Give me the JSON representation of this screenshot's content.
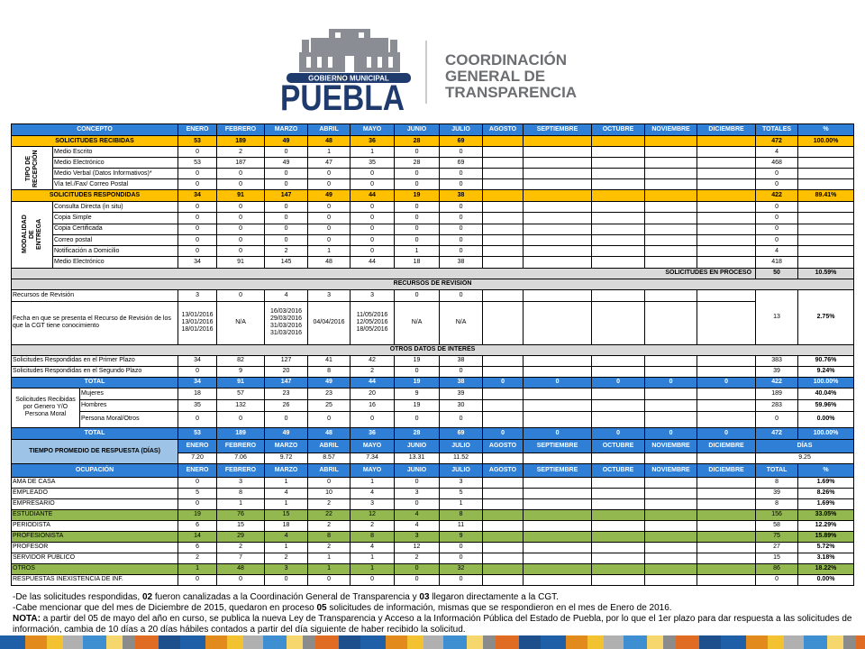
{
  "header": {
    "municipality": "GOBIERNO MUNICIPAL",
    "city": "PUEBLA",
    "org": [
      "COORDINACIÓN",
      "GENERAL DE",
      "TRANSPARENCIA"
    ]
  },
  "table": {
    "columns": [
      "CONCEPTO",
      "ENERO",
      "FEBRERO",
      "MARZO",
      "ABRIL",
      "MAYO",
      "JUNIO",
      "JULIO",
      "AGOSTO",
      "SEPTIEMBRE",
      "OCTUBRE",
      "NOVIEMBRE",
      "DICIEMBRE",
      "TOTALES",
      "%"
    ],
    "received": {
      "label": "SOLICITUDES RECIBIDAS",
      "months": [
        53,
        189,
        49,
        48,
        36,
        28,
        69
      ],
      "total": 472,
      "pct": "100.00%"
    },
    "reception": {
      "label": "TIPO DE RECEPCIÓN",
      "rows": [
        {
          "label": "Medio Escrito",
          "months": [
            0,
            2,
            0,
            1,
            1,
            0,
            0
          ],
          "total": 4
        },
        {
          "label": "Medio Electrónico",
          "months": [
            53,
            187,
            49,
            47,
            35,
            28,
            69
          ],
          "total": 468
        },
        {
          "label": "Medio Verbal (Datos Informativos)*",
          "months": [
            0,
            0,
            0,
            0,
            0,
            0,
            0
          ],
          "total": 0
        },
        {
          "label": "Vía tel./Fax/ Correo Postal",
          "months": [
            0,
            0,
            0,
            0,
            0,
            0,
            0
          ],
          "total": 0
        }
      ]
    },
    "responded": {
      "label": "SOLICITUDES RESPONDIDAS",
      "months": [
        34,
        91,
        147,
        49,
        44,
        19,
        38
      ],
      "total": 422,
      "pct": "89.41%"
    },
    "delivery": {
      "label": "MODALIDAD DE ENTREGA",
      "rows": [
        {
          "label": "Consulta Directa (in situ)",
          "months": [
            0,
            0,
            0,
            0,
            0,
            0,
            0
          ],
          "total": 0
        },
        {
          "label": "Copia Simple",
          "months": [
            0,
            0,
            0,
            0,
            0,
            0,
            0
          ],
          "total": 0
        },
        {
          "label": "Copia Certificada",
          "months": [
            0,
            0,
            0,
            0,
            0,
            0,
            0
          ],
          "total": 0
        },
        {
          "label": "Correo postal",
          "months": [
            0,
            0,
            0,
            0,
            0,
            0,
            0
          ],
          "total": 0
        },
        {
          "label": "Notificación a Domicilio",
          "months": [
            0,
            0,
            2,
            1,
            0,
            1,
            0
          ],
          "total": 4
        },
        {
          "label": "Medio Electrónico",
          "months": [
            34,
            91,
            145,
            48,
            44,
            18,
            38
          ],
          "total": 418
        }
      ]
    },
    "in_process": {
      "label": "SOLICITUDES EN PROCESO",
      "total": 50,
      "pct": "10.59%"
    },
    "appeals_title": "RECURSOS DE REVISIÓN",
    "appeals": {
      "label": "Recursos de Revisión",
      "months": [
        3,
        0,
        4,
        3,
        3,
        0,
        0
      ],
      "total": 13,
      "pct": "2.75%"
    },
    "appeal_dates": {
      "label": "Fecha en que se presenta el Recurso de Revisión de los que la CGT tiene conocimiento",
      "months": [
        [
          "13/01/2016",
          "13/01/2016",
          "18/01/2016"
        ],
        "N/A",
        [
          "16/03/2016",
          "29/03/2016",
          "31/03/2016",
          "31/03/2016"
        ],
        "04/04/2016",
        [
          "11/05/2016",
          "12/05/2016",
          "18/05/2016"
        ],
        "N/A",
        "N/A"
      ]
    },
    "other_title": "OTROS DATOS DE INTERÉS",
    "terms": [
      {
        "label": "Solicitudes Respondidas  en el Primer Plazo",
        "months": [
          34,
          82,
          127,
          41,
          42,
          19,
          38
        ],
        "total": 383,
        "pct": "90.76%"
      },
      {
        "label": "Solicitudes Respondidas en el Segundo Plazo",
        "months": [
          0,
          9,
          20,
          8,
          2,
          0,
          0
        ],
        "total": 39,
        "pct": "9.24%"
      },
      {
        "label": "TOTAL",
        "months": [
          34,
          91,
          147,
          49,
          44,
          19,
          38,
          0,
          0,
          0,
          0,
          0
        ],
        "total": 422,
        "pct": "100.00%"
      }
    ],
    "gender": {
      "label": "Solicitudes Recibidas por Genero Y/O Persona Moral",
      "rows": [
        {
          "label": "Mujeres",
          "months": [
            18,
            57,
            23,
            23,
            20,
            9,
            39
          ],
          "total": 189,
          "pct": "40.04%"
        },
        {
          "label": "Hombres",
          "months": [
            35,
            132,
            26,
            25,
            16,
            19,
            30
          ],
          "total": 283,
          "pct": "59.96%"
        },
        {
          "label": "Persona Moral/Otros",
          "months": [
            0,
            0,
            0,
            0,
            0,
            0,
            0
          ],
          "total": 0,
          "pct": "0.00%"
        }
      ]
    },
    "gender_total": {
      "label": "TOTAL",
      "months": [
        53,
        189,
        49,
        48,
        36,
        28,
        69,
        0,
        0,
        0,
        0,
        0
      ],
      "total": 472,
      "pct": "100.00%"
    },
    "response_time": {
      "label": "TIEMPO PROMEDIO DE RESPUESTA (DÍAS)",
      "unit": "DÍAS",
      "months": [
        "7.20",
        "7.06",
        "9.72",
        "8.57",
        "7.34",
        "13.31",
        "11.52"
      ],
      "days": "9.25"
    },
    "occupation": {
      "label": "OCUPACIÓN",
      "total_label": "TOTAL",
      "rows": [
        {
          "label": "AMA DE CASA",
          "months": [
            0,
            3,
            1,
            0,
            1,
            0,
            3
          ],
          "total": 8,
          "pct": "1.69%"
        },
        {
          "label": "EMPLEADO",
          "months": [
            5,
            8,
            4,
            10,
            4,
            3,
            5
          ],
          "total": 39,
          "pct": "8.26%"
        },
        {
          "label": "EMPRESARIO",
          "months": [
            0,
            1,
            1,
            2,
            3,
            0,
            1
          ],
          "total": 8,
          "pct": "1.69%"
        },
        {
          "label": "ESTUDIANTE",
          "months": [
            19,
            76,
            15,
            22,
            12,
            4,
            8
          ],
          "total": 156,
          "pct": "33.05%",
          "highlight": true
        },
        {
          "label": "PERIODISTA",
          "months": [
            6,
            15,
            18,
            2,
            2,
            4,
            11
          ],
          "total": 58,
          "pct": "12.29%"
        },
        {
          "label": "PROFESIONISTA",
          "months": [
            14,
            29,
            4,
            8,
            8,
            3,
            9
          ],
          "total": 75,
          "pct": "15.89%",
          "highlight": true
        },
        {
          "label": "PROFESOR",
          "months": [
            6,
            2,
            1,
            2,
            4,
            12,
            0
          ],
          "total": 27,
          "pct": "5.72%"
        },
        {
          "label": "SERVIDOR PÚBLICO",
          "months": [
            2,
            7,
            2,
            1,
            1,
            2,
            0
          ],
          "total": 15,
          "pct": "3.18%"
        },
        {
          "label": "OTROS",
          "months": [
            1,
            48,
            3,
            1,
            1,
            0,
            32
          ],
          "total": 86,
          "pct": "18.22%",
          "highlight": true
        },
        {
          "label": "RESPUESTAS INEXISTENCIA DE INF.",
          "months": [
            0,
            0,
            0,
            0,
            0,
            0,
            0
          ],
          "total": 0,
          "pct": "0.00%"
        }
      ]
    }
  },
  "notes": [
    [
      {
        "text": "-De las solicitudes respondidas, "
      },
      {
        "text": "02",
        "bold": true
      },
      {
        "text": " fueron canalizadas a la Coordinación General de Transparencia y "
      },
      {
        "text": "03",
        "bold": true
      },
      {
        "text": " llegaron directamente a la CGT."
      }
    ],
    [
      {
        "text": "-Cabe mencionar que del mes de Diciembre de 2015, quedaron en proceso "
      },
      {
        "text": "05",
        "bold": true
      },
      {
        "text": " solicitudes de información, mismas que se respondieron en el mes de Enero de 2016."
      }
    ],
    [
      {
        "text": "NOTA:",
        "bold": true
      },
      {
        "text": " a partir del  05 de mayo del año en curso, se publica la nueva Ley de Transparencia y Acceso a la Información  Pública del Estado de Puebla, por lo que el 1er plazo para dar respuesta a las solicitudes de información, cambia de 10 días a 20 días hábiles contados a partir del día siguiente  de  haber recibido la solicitud."
      }
    ]
  ]
}
